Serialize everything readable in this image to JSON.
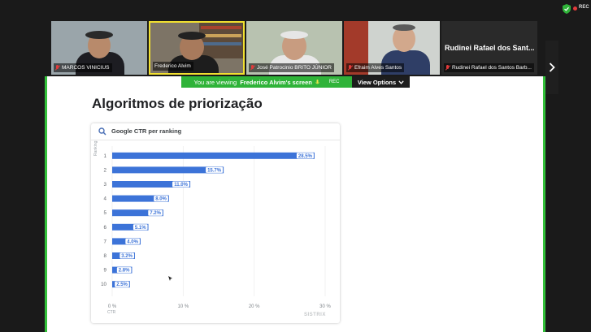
{
  "app": {
    "rec_label": "REC",
    "colors": {
      "accent_green": "#2fb339",
      "bar_blue": "#3c73d8",
      "rec_red": "#e23b3b"
    }
  },
  "participants": [
    {
      "name": "MARCOS VINICIUS",
      "muted": true
    },
    {
      "name": "Frederico Alvim",
      "muted": false,
      "active_speaker": true
    },
    {
      "name": "José Patrocinio BRITO JÚNIOR",
      "muted": true
    },
    {
      "name": "Efraim Alves Santos",
      "muted": true
    },
    {
      "name": "Rudinei Rafael dos Santos Barb...",
      "display_title": "Rudinei Rafael dos Sant...",
      "muted": true
    }
  ],
  "next_icon": "chevron-right-icon",
  "share_banner": {
    "message": "You are viewing",
    "sharer": "Frederico Alvim's screen",
    "rec": "REC",
    "view_options": "View Options"
  },
  "slide": {
    "title": "Algoritmos de priorização",
    "card_title": "Google CTR per ranking",
    "y_axis_label": "Ranking",
    "x_axis_label": "CTR",
    "watermark": "SISTRIX"
  },
  "chart_data": {
    "type": "bar",
    "orientation": "horizontal",
    "title": "Google CTR per ranking",
    "ylabel": "Ranking",
    "xlabel": "CTR",
    "categories": [
      "1",
      "2",
      "3",
      "4",
      "5",
      "6",
      "7",
      "8",
      "9",
      "10"
    ],
    "values": [
      28.5,
      15.7,
      11.0,
      8.0,
      7.2,
      5.1,
      4.0,
      3.2,
      2.8,
      2.5
    ],
    "value_labels": [
      "28.5%",
      "15.7%",
      "11.0%",
      "8.0%",
      "7.2%",
      "5.1%",
      "4.0%",
      "3.2%",
      "2.8%",
      "2.5%"
    ],
    "xlim": [
      0,
      30
    ],
    "xticks": [
      0,
      10,
      20,
      30
    ],
    "xtick_labels": [
      "0 %",
      "10 %",
      "20 %",
      "30 %"
    ],
    "grid": true,
    "color": "#3c73d8"
  }
}
